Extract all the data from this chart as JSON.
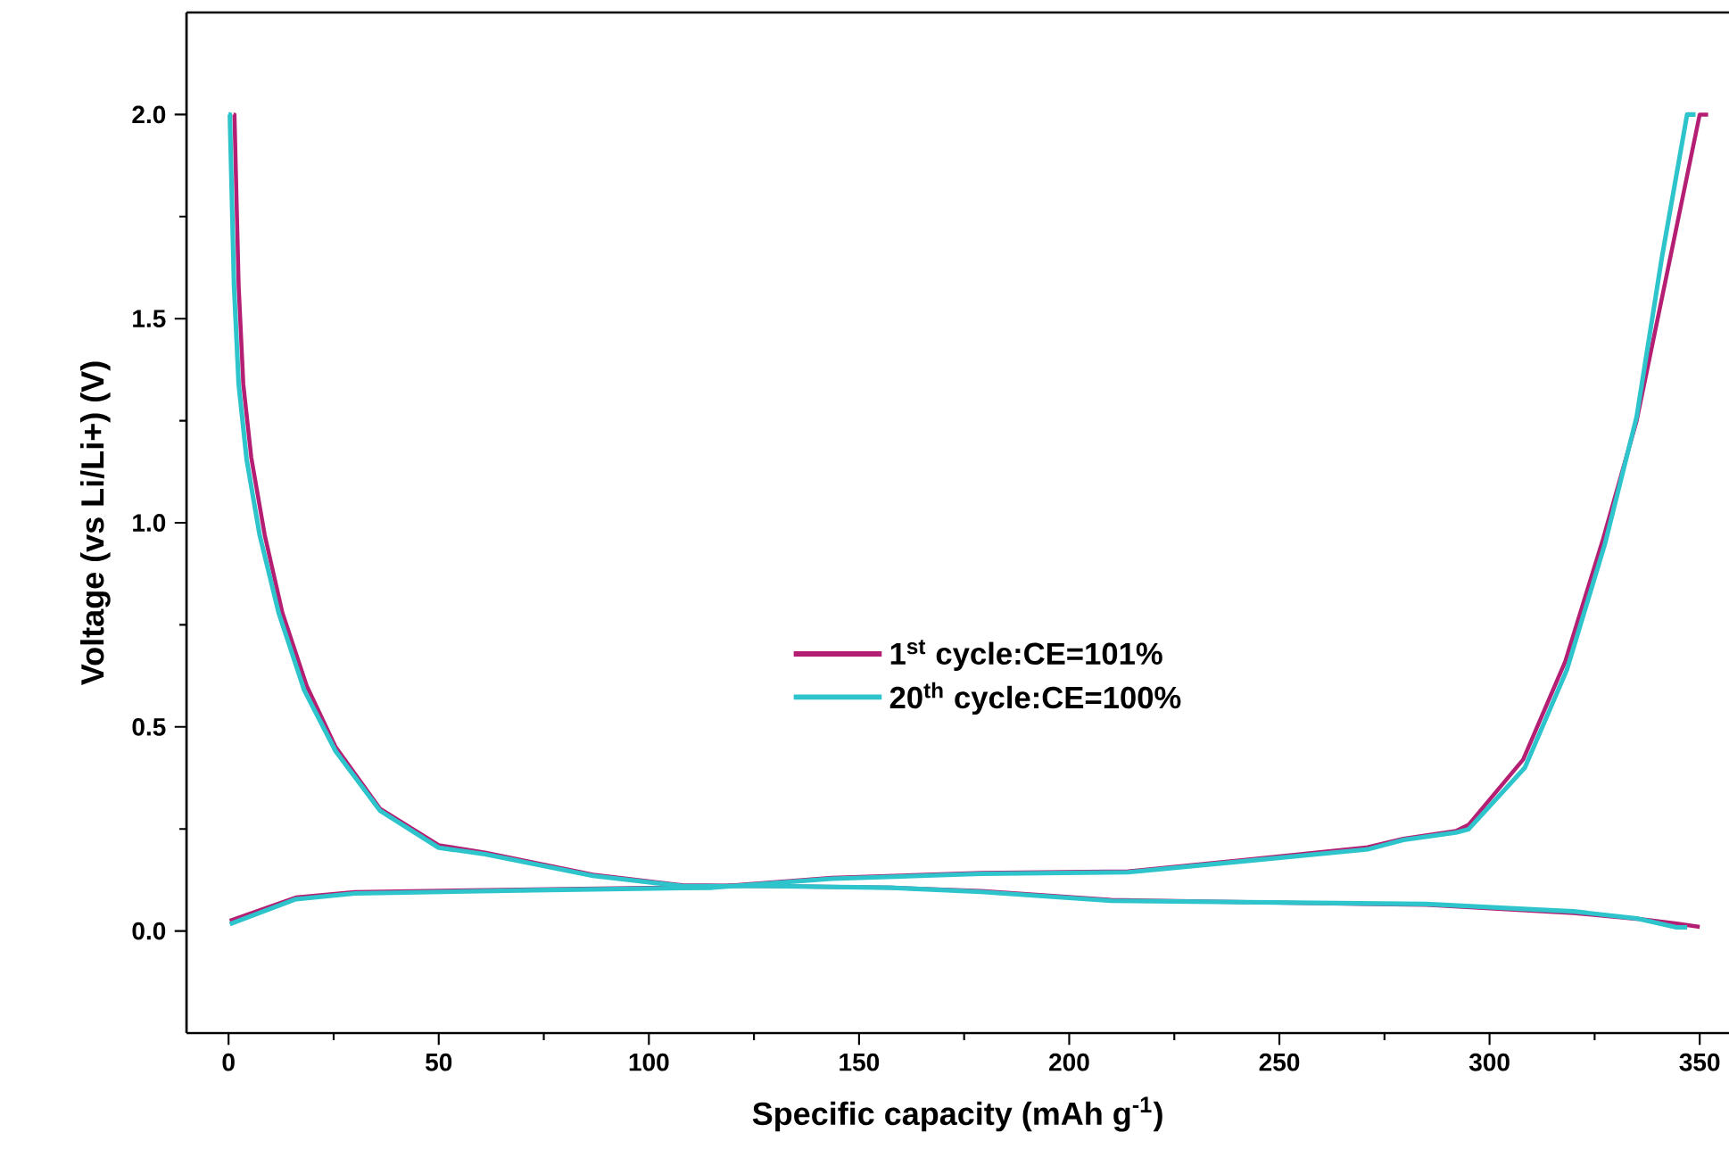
{
  "chart_data": {
    "type": "line",
    "xlabel": "Specific capacity (mAh g$^{-1}$)",
    "ylabel": "Voltage (vs Li/Li+) (V)",
    "xlim": [
      -10,
      357
    ],
    "ylim": [
      -0.25,
      2.25
    ],
    "xticks": [
      0,
      50,
      100,
      150,
      200,
      250,
      300,
      350
    ],
    "yticks": [
      {
        "value": 0,
        "label": "0.0"
      },
      {
        "value": 0.5,
        "label": "0.5"
      },
      {
        "value": 1,
        "label": "1.0"
      },
      {
        "value": 1.5,
        "label": "1.5"
      },
      {
        "value": 2,
        "label": "2.0"
      }
    ],
    "legend": "center",
    "series": [
      {
        "name": "1$^{st}$ cycle:CE=101%",
        "color": "#b41f73",
        "x": [
          1.2,
          1.4,
          2.4,
          3.5,
          5.4,
          8.6,
          12.8,
          18.6,
          25.5,
          36,
          50,
          61,
          86.7,
          108,
          129,
          157.6,
          179,
          210,
          285,
          320,
          335,
          344.5,
          350
        ],
        "values": [
          2.0,
          2.0,
          1.58,
          1.34,
          1.16,
          0.97,
          0.78,
          0.6,
          0.45,
          0.3,
          0.21,
          0.192,
          0.138,
          0.112,
          0.11,
          0.106,
          0.098,
          0.076,
          0.064,
          0.044,
          0.03,
          0.018,
          0.01
        ]
      },
      {
        "color": "#b41f73",
        "x": [
          0.3,
          16,
          30,
          72.6,
          115,
          143.5,
          179,
          214,
          242.6,
          271,
          279.5,
          292,
          295,
          308,
          318,
          327,
          335,
          342,
          350,
          352
        ],
        "values": [
          0.025,
          0.082,
          0.095,
          0.102,
          0.108,
          0.13,
          0.142,
          0.146,
          0.175,
          0.205,
          0.226,
          0.245,
          0.26,
          0.42,
          0.66,
          0.96,
          1.25,
          1.6,
          2.0,
          2.0
        ]
      },
      {
        "name": "20$^{th}$ cycle:CE=100%",
        "color": "#2ec4cc",
        "x": [
          0,
          0.3,
          1.3,
          2.4,
          4.3,
          7.4,
          11.9,
          18,
          25.5,
          36,
          50,
          61,
          86.7,
          108,
          129,
          157.6,
          179,
          210,
          285,
          320,
          335,
          344.5,
          347
        ],
        "values": [
          2.0,
          2.0,
          1.58,
          1.34,
          1.155,
          0.97,
          0.78,
          0.59,
          0.44,
          0.295,
          0.204,
          0.188,
          0.135,
          0.11,
          0.11,
          0.106,
          0.096,
          0.074,
          0.066,
          0.048,
          0.031,
          0.009,
          0.009
        ]
      },
      {
        "color": "#2ec4cc",
        "x": [
          0.3,
          16,
          30,
          72.6,
          115,
          143.5,
          179,
          214,
          242.6,
          271,
          279.5,
          292,
          295,
          308.4,
          318.4,
          327.5,
          335,
          341,
          347,
          349
        ],
        "values": [
          0.017,
          0.078,
          0.092,
          0.1,
          0.106,
          0.128,
          0.14,
          0.144,
          0.172,
          0.2,
          0.223,
          0.241,
          0.249,
          0.4,
          0.64,
          0.95,
          1.26,
          1.65,
          2.0,
          2.0
        ]
      }
    ]
  }
}
